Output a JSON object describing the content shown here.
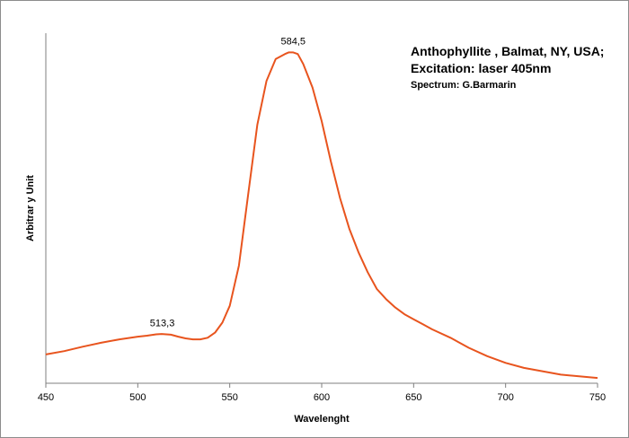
{
  "chart_data": {
    "type": "line",
    "title": "",
    "xlabel": "Wavelenght",
    "ylabel": "Arbitrar y Unit",
    "xlim": [
      450,
      750
    ],
    "ylim": [
      0,
      100
    ],
    "x_ticks": [
      450,
      500,
      550,
      600,
      650,
      700,
      750
    ],
    "x_tick_labels": [
      "450",
      "500",
      "550",
      "600",
      "650",
      "700",
      "750"
    ],
    "grid": false,
    "legend": "none",
    "annotation": {
      "line1": "Anthophyllite , Balmat, NY, USA;",
      "line2": "Excitation: laser 405nm",
      "line3": "Spectrum: G.Barmarin"
    },
    "peak_labels": [
      {
        "x": 513.3,
        "y": 13.5,
        "label": "513,3"
      },
      {
        "x": 584.5,
        "y": 97.5,
        "label": "584,5"
      }
    ],
    "series": [
      {
        "color": "#e8541e",
        "x": [
          450,
          460,
          470,
          480,
          490,
          500,
          505,
          510,
          513,
          518,
          522,
          526,
          530,
          534,
          538,
          542,
          546,
          550,
          555,
          560,
          565,
          570,
          575,
          580,
          582,
          584.5,
          587,
          590,
          595,
          600,
          605,
          610,
          615,
          620,
          625,
          630,
          635,
          640,
          645,
          650,
          655,
          660,
          670,
          680,
          690,
          700,
          710,
          720,
          730,
          740,
          750
        ],
        "y": [
          7.5,
          8.5,
          9.8,
          11.0,
          12.0,
          12.8,
          13.1,
          13.5,
          13.6,
          13.4,
          12.8,
          12.3,
          12.0,
          12.0,
          12.5,
          14.0,
          17.0,
          22.0,
          34.0,
          55.0,
          76.0,
          89.0,
          95.5,
          97.0,
          97.5,
          97.5,
          97.0,
          94.0,
          87.0,
          77.0,
          65.0,
          54.0,
          45.0,
          38.0,
          32.0,
          27.0,
          24.0,
          21.5,
          19.5,
          18.0,
          16.5,
          15.0,
          12.5,
          9.5,
          7.0,
          5.0,
          3.5,
          2.5,
          1.5,
          1.0,
          0.5
        ]
      }
    ]
  }
}
